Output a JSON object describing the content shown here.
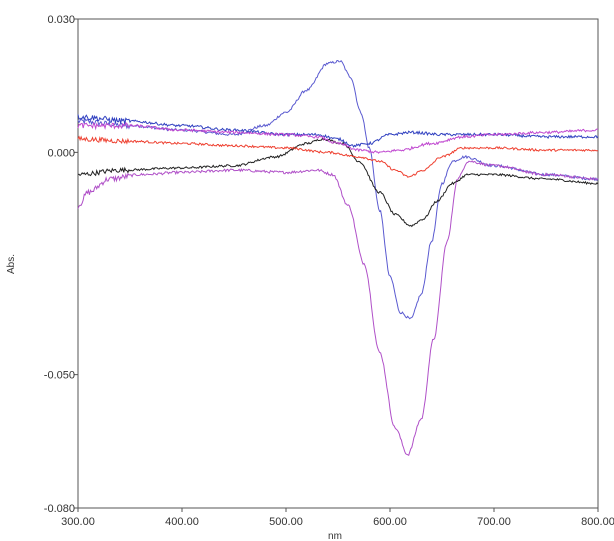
{
  "chart_data": {
    "type": "line",
    "title": "",
    "xlabel": "nm",
    "ylabel": "Abs.",
    "xlim": [
      300,
      800
    ],
    "ylim": [
      -0.08,
      0.03
    ],
    "grid": false,
    "x_ticks": [
      "300.00",
      "400.00",
      "500.00",
      "600.00",
      "700.00",
      "800.00"
    ],
    "y_ticks": [
      "0.030",
      "0.000",
      "-0.050",
      "-0.080"
    ],
    "series": [
      {
        "color": "#5a5ad0",
        "noise": 0.0006,
        "points": [
          [
            300,
            0.007
          ],
          [
            350,
            0.006
          ],
          [
            400,
            0.005
          ],
          [
            450,
            0.004
          ],
          [
            480,
            0.006
          ],
          [
            500,
            0.009
          ],
          [
            520,
            0.014
          ],
          [
            540,
            0.02
          ],
          [
            552,
            0.0205
          ],
          [
            562,
            0.017
          ],
          [
            572,
            0.009
          ],
          [
            580,
            0.001
          ],
          [
            590,
            -0.013
          ],
          [
            600,
            -0.028
          ],
          [
            610,
            -0.036
          ],
          [
            620,
            -0.0375
          ],
          [
            630,
            -0.032
          ],
          [
            640,
            -0.02
          ],
          [
            650,
            -0.007
          ],
          [
            660,
            -0.002
          ],
          [
            672,
            -0.001
          ],
          [
            700,
            -0.003
          ],
          [
            750,
            -0.005
          ],
          [
            800,
            -0.006
          ]
        ]
      },
      {
        "color": "#b050c8",
        "noise": 0.0006,
        "points": [
          [
            300,
            -0.012
          ],
          [
            310,
            -0.009
          ],
          [
            330,
            -0.006
          ],
          [
            360,
            -0.005
          ],
          [
            400,
            -0.0045
          ],
          [
            450,
            -0.004
          ],
          [
            500,
            -0.0045
          ],
          [
            530,
            -0.004
          ],
          [
            545,
            -0.005
          ],
          [
            560,
            -0.012
          ],
          [
            575,
            -0.025
          ],
          [
            590,
            -0.045
          ],
          [
            605,
            -0.062
          ],
          [
            617,
            -0.068
          ],
          [
            630,
            -0.06
          ],
          [
            642,
            -0.042
          ],
          [
            655,
            -0.02
          ],
          [
            665,
            -0.006
          ],
          [
            675,
            -0.002
          ],
          [
            700,
            -0.003
          ],
          [
            750,
            -0.005
          ],
          [
            800,
            -0.006
          ]
        ]
      },
      {
        "color": "#222222",
        "noise": 0.0005,
        "points": [
          [
            300,
            -0.005
          ],
          [
            340,
            -0.004
          ],
          [
            400,
            -0.0035
          ],
          [
            450,
            -0.003
          ],
          [
            490,
            -0.001
          ],
          [
            520,
            0.002
          ],
          [
            535,
            0.003
          ],
          [
            555,
            0.002
          ],
          [
            570,
            -0.002
          ],
          [
            590,
            -0.009
          ],
          [
            605,
            -0.014
          ],
          [
            620,
            -0.0165
          ],
          [
            632,
            -0.015
          ],
          [
            645,
            -0.011
          ],
          [
            660,
            -0.007
          ],
          [
            675,
            -0.005
          ],
          [
            700,
            -0.005
          ],
          [
            750,
            -0.006
          ],
          [
            800,
            -0.007
          ]
        ]
      },
      {
        "color": "#ee4030",
        "noise": 0.0005,
        "points": [
          [
            300,
            0.003
          ],
          [
            350,
            0.0025
          ],
          [
            400,
            0.002
          ],
          [
            450,
            0.0015
          ],
          [
            500,
            0.001
          ],
          [
            540,
            0.0
          ],
          [
            570,
            -0.001
          ],
          [
            590,
            -0.002
          ],
          [
            605,
            -0.004
          ],
          [
            618,
            -0.0055
          ],
          [
            632,
            -0.004
          ],
          [
            650,
            -0.001
          ],
          [
            670,
            0.001
          ],
          [
            700,
            0.001
          ],
          [
            750,
            0.0005
          ],
          [
            800,
            0.0005
          ]
        ]
      },
      {
        "color": "#3040c0",
        "noise": 0.0006,
        "points": [
          [
            300,
            0.008
          ],
          [
            350,
            0.007
          ],
          [
            400,
            0.006
          ],
          [
            450,
            0.005
          ],
          [
            500,
            0.004
          ],
          [
            530,
            0.004
          ],
          [
            550,
            0.003
          ],
          [
            565,
            0.0015
          ],
          [
            580,
            0.002
          ],
          [
            600,
            0.004
          ],
          [
            620,
            0.0045
          ],
          [
            650,
            0.004
          ],
          [
            700,
            0.004
          ],
          [
            750,
            0.0035
          ],
          [
            800,
            0.0035
          ]
        ]
      },
      {
        "color": "#c048d0",
        "noise": 0.0006,
        "points": [
          [
            300,
            0.006
          ],
          [
            350,
            0.006
          ],
          [
            400,
            0.005
          ],
          [
            450,
            0.0045
          ],
          [
            500,
            0.004
          ],
          [
            530,
            0.0035
          ],
          [
            550,
            0.002
          ],
          [
            570,
            0.0005
          ],
          [
            590,
            0.0
          ],
          [
            610,
            0.0005
          ],
          [
            640,
            0.002
          ],
          [
            670,
            0.0035
          ],
          [
            700,
            0.004
          ],
          [
            750,
            0.0045
          ],
          [
            800,
            0.005
          ]
        ]
      }
    ]
  }
}
